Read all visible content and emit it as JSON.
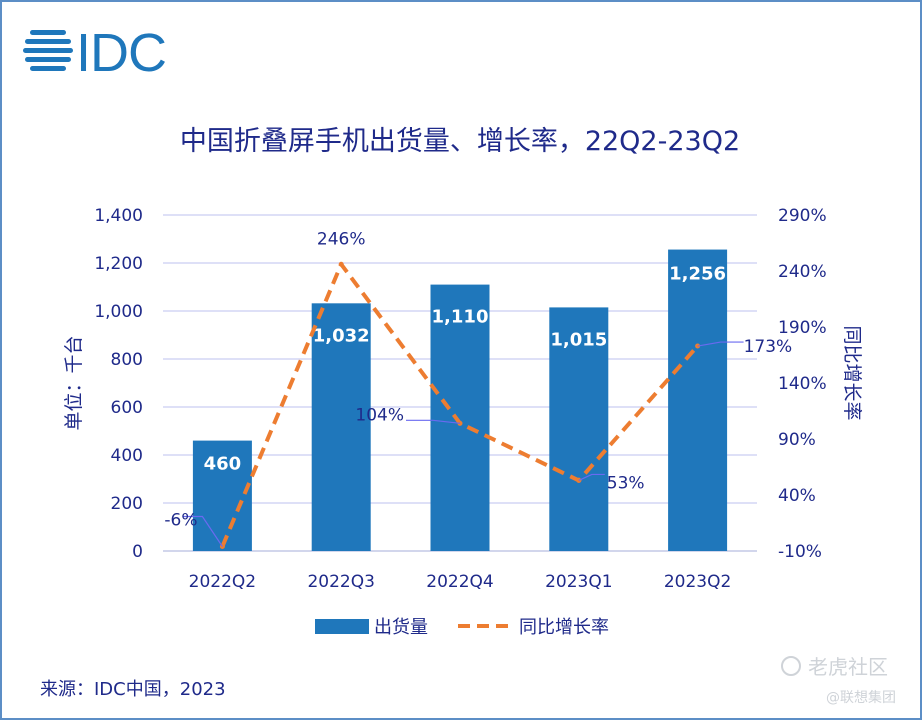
{
  "logo_text": "IDC",
  "source": "来源：IDC中国，2023",
  "watermark": {
    "main": "老虎社区",
    "sub": "@联想集团"
  },
  "colors": {
    "bar": "#1f77bb",
    "line": "#ed7d31",
    "text": "#1f2a8a",
    "grid": "#c9cdf2",
    "frame": "#5c8ec6"
  },
  "chart_data": {
    "type": "bar",
    "title": "中国折叠屏手机出货量、增长率，22Q2-23Q2",
    "categories": [
      "2022Q2",
      "2022Q3",
      "2022Q4",
      "2023Q1",
      "2023Q2"
    ],
    "series": [
      {
        "name": "出货量",
        "type": "bar",
        "axis": "left",
        "values": [
          460,
          1032,
          1110,
          1015,
          1256
        ],
        "labels": [
          "460",
          "1,032",
          "1,110",
          "1,015",
          "1,256"
        ]
      },
      {
        "name": "同比增长率",
        "type": "line",
        "style": "dashed",
        "axis": "right",
        "values": [
          -6,
          246,
          104,
          53,
          173
        ],
        "labels": [
          "-6%",
          "246%",
          "104%",
          "53%",
          "173%"
        ]
      }
    ],
    "ylabel": "单位：千台",
    "y2label": "同比增长率",
    "ylim": [
      0,
      1400
    ],
    "y2lim": [
      -10,
      290
    ],
    "yticks": [
      "0",
      "200",
      "400",
      "600",
      "800",
      "1,000",
      "1,200",
      "1,400"
    ],
    "y2ticks": [
      "-10%",
      "40%",
      "90%",
      "140%",
      "190%",
      "240%",
      "290%"
    ],
    "grid": true,
    "legend_position": "bottom"
  }
}
